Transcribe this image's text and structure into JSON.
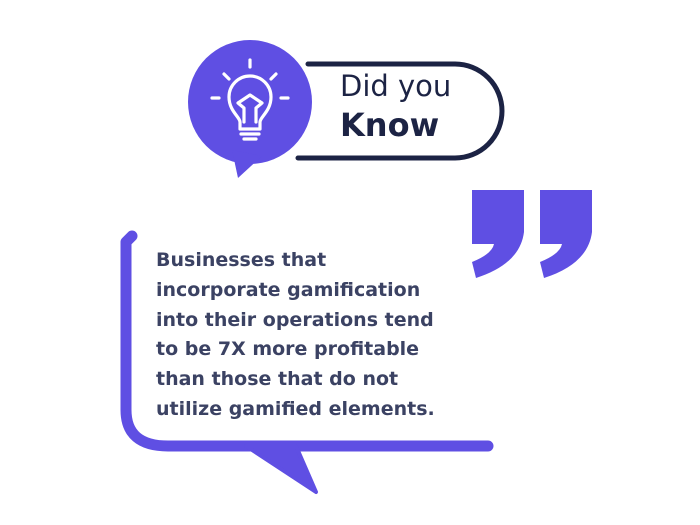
{
  "header": {
    "line1": "Did you",
    "line2": "Know"
  },
  "icons": {
    "bulb": "lightbulb-icon",
    "quote": "quotation-mark-icon"
  },
  "quote": {
    "text": "Businesses that incorporate gamification into their operations tend to be 7X more profitable than those that do not utilize gamified elements."
  },
  "colors": {
    "accent": "#5f4fe3",
    "dark": "#1c2344",
    "text": "#3b4263",
    "white": "#ffffff"
  }
}
